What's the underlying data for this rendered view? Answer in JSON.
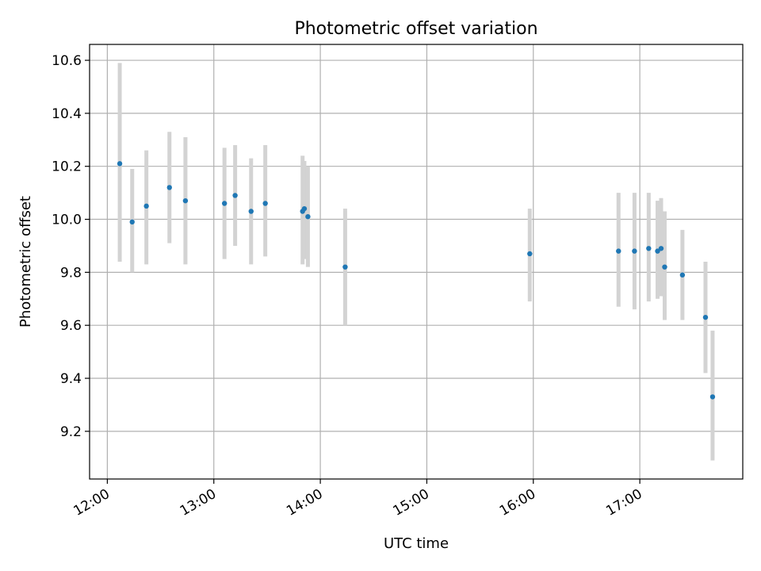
{
  "chart_data": {
    "type": "scatter",
    "title": "Photometric offset variation",
    "xlabel": "UTC time",
    "ylabel": "Photometric offset",
    "x_unit": "time of day (HH:MM)",
    "xlim": [
      "11:50",
      "17:58"
    ],
    "ylim": [
      9.02,
      10.66
    ],
    "x_ticks": [
      "12:00",
      "13:00",
      "14:00",
      "15:00",
      "16:00",
      "17:00"
    ],
    "y_ticks": [
      9.2,
      9.4,
      9.6,
      9.8,
      10.0,
      10.2,
      10.4,
      10.6
    ],
    "y_tick_labels": [
      "9.2",
      "9.4",
      "9.6",
      "9.8",
      "10.0",
      "10.2",
      "10.4",
      "10.6"
    ],
    "grid": true,
    "legend": "none",
    "colors": {
      "points": "#1f77b4",
      "error_bars": "#d3d3d3",
      "grid": "#b0b0b0"
    },
    "points": [
      {
        "x": "12:07",
        "y": 10.21,
        "ylow": 9.84,
        "yhigh": 10.59
      },
      {
        "x": "12:14",
        "y": 9.99,
        "ylow": 9.8,
        "yhigh": 10.19
      },
      {
        "x": "12:22",
        "y": 10.05,
        "ylow": 9.83,
        "yhigh": 10.26
      },
      {
        "x": "12:35",
        "y": 10.12,
        "ylow": 9.91,
        "yhigh": 10.33
      },
      {
        "x": "12:44",
        "y": 10.07,
        "ylow": 9.83,
        "yhigh": 10.31
      },
      {
        "x": "13:06",
        "y": 10.06,
        "ylow": 9.85,
        "yhigh": 10.27
      },
      {
        "x": "13:12",
        "y": 10.09,
        "ylow": 9.9,
        "yhigh": 10.28
      },
      {
        "x": "13:21",
        "y": 10.03,
        "ylow": 9.83,
        "yhigh": 10.23
      },
      {
        "x": "13:29",
        "y": 10.06,
        "ylow": 9.86,
        "yhigh": 10.28
      },
      {
        "x": "13:50",
        "y": 10.03,
        "ylow": 9.83,
        "yhigh": 10.24
      },
      {
        "x": "13:51",
        "y": 10.04,
        "ylow": 9.85,
        "yhigh": 10.22
      },
      {
        "x": "13:53",
        "y": 10.01,
        "ylow": 9.82,
        "yhigh": 10.2
      },
      {
        "x": "14:14",
        "y": 9.82,
        "ylow": 9.6,
        "yhigh": 10.04
      },
      {
        "x": "15:58",
        "y": 9.87,
        "ylow": 9.69,
        "yhigh": 10.04
      },
      {
        "x": "16:48",
        "y": 9.88,
        "ylow": 9.67,
        "yhigh": 10.1
      },
      {
        "x": "16:57",
        "y": 9.88,
        "ylow": 9.66,
        "yhigh": 10.1
      },
      {
        "x": "17:05",
        "y": 9.89,
        "ylow": 9.69,
        "yhigh": 10.1
      },
      {
        "x": "17:10",
        "y": 9.88,
        "ylow": 9.7,
        "yhigh": 10.07
      },
      {
        "x": "17:12",
        "y": 9.89,
        "ylow": 9.71,
        "yhigh": 10.08
      },
      {
        "x": "17:14",
        "y": 9.82,
        "ylow": 9.62,
        "yhigh": 10.03
      },
      {
        "x": "17:24",
        "y": 9.79,
        "ylow": 9.62,
        "yhigh": 9.96
      },
      {
        "x": "17:37",
        "y": 9.63,
        "ylow": 9.42,
        "yhigh": 9.84
      },
      {
        "x": "17:41",
        "y": 9.33,
        "ylow": 9.09,
        "yhigh": 9.58
      }
    ]
  }
}
